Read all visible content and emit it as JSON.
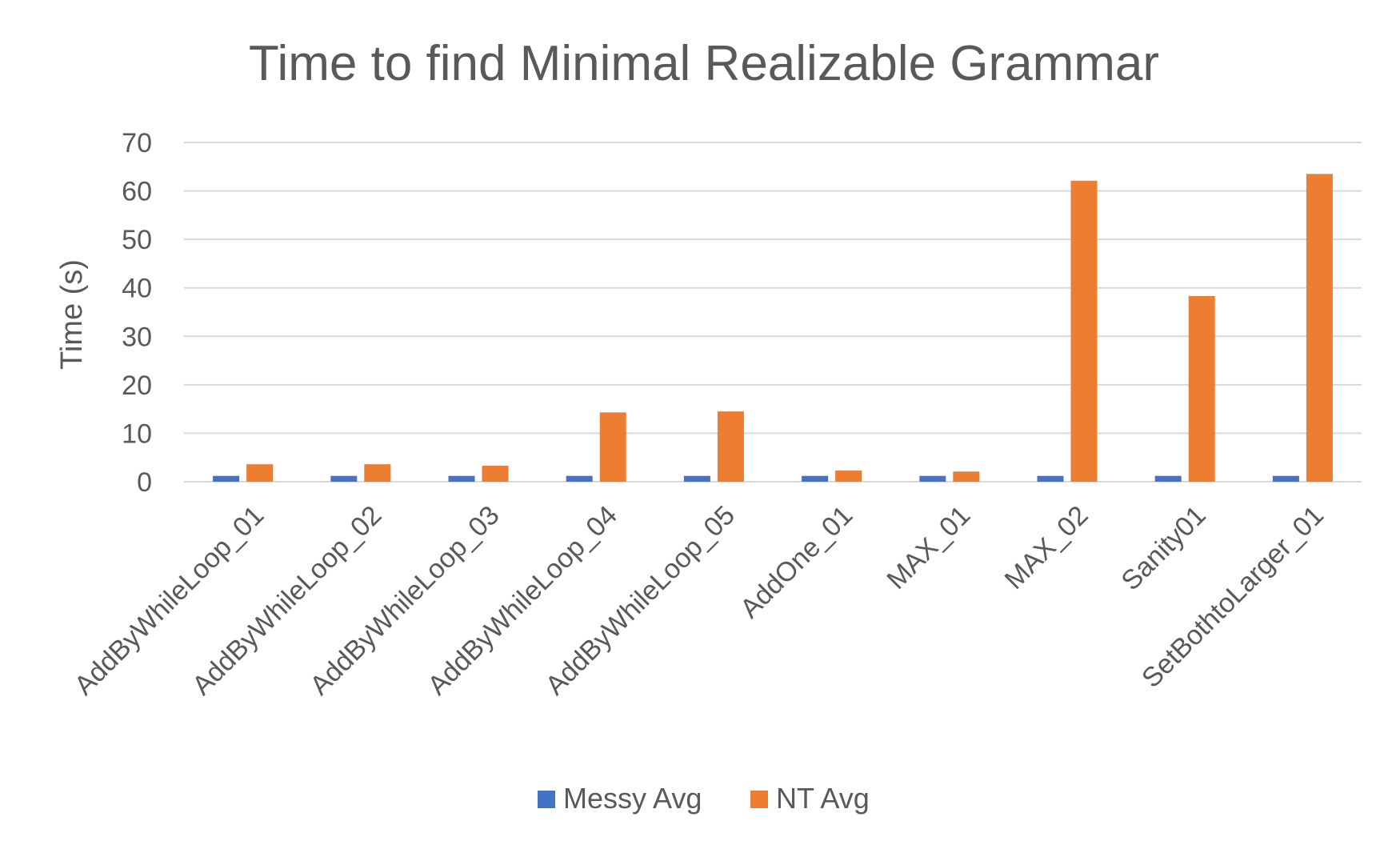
{
  "chart_data": {
    "type": "bar",
    "title": "Time to find Minimal Realizable Grammar",
    "xlabel": "",
    "ylabel": "Time (s)",
    "ylim": [
      0,
      70
    ],
    "yticks": [
      0,
      10,
      20,
      30,
      40,
      50,
      60,
      70
    ],
    "grid": true,
    "legend_position": "bottom",
    "categories": [
      "AddByWhileLoop_01",
      "AddByWhileLoop_02",
      "AddByWhileLoop_03",
      "AddByWhileLoop_04",
      "AddByWhileLoop_05",
      "AddOne_01",
      "MAX_01",
      "MAX_02",
      "Sanity01",
      "SetBothtoLarger_01"
    ],
    "series": [
      {
        "name": "Messy Avg",
        "color": "#4472c4",
        "values": [
          1.2,
          1.2,
          1.2,
          1.2,
          1.2,
          1.2,
          1.2,
          1.2,
          1.2,
          1.2
        ]
      },
      {
        "name": "NT Avg",
        "color": "#ed7d31",
        "values": [
          3.6,
          3.6,
          3.3,
          14.3,
          14.5,
          2.3,
          2.1,
          62.1,
          38.3,
          63.5
        ]
      }
    ]
  }
}
